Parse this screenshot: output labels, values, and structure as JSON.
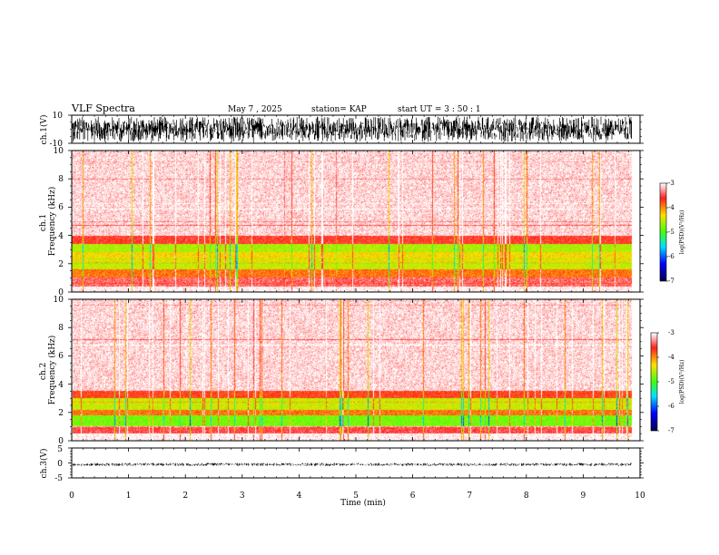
{
  "header": {
    "title": "VLF Spectra",
    "date": "May 7 , 2025",
    "station": "station= KAP",
    "start": "start  UT =   3  : 50 : 1"
  },
  "colors": {
    "white": "#ffffff",
    "red": "#ff2020",
    "yellow": "#ffe000",
    "green": "#40ff10",
    "cyan": "#00e0ff",
    "blue": "#0000ff",
    "darkblue": "#000050",
    "ink": "#000000"
  },
  "chart_data": [
    {
      "type": "line",
      "id": "ch1-waveform",
      "ylabel": "ch.1(V)",
      "xlim": [
        0,
        10
      ],
      "ylim": [
        -10,
        10
      ],
      "yticks": [
        "10",
        "-10"
      ],
      "data_end_min": 9.85,
      "amplitude_range_v": [
        -9,
        9
      ]
    },
    {
      "type": "heatmap",
      "id": "ch1-spectrogram",
      "ylabel": "ch.1\nFrequency (kHz)",
      "xlim": [
        0,
        10
      ],
      "ylim": [
        0,
        10
      ],
      "yticks": [
        "0",
        "2",
        "4",
        "6",
        "8",
        "10"
      ],
      "data_end_min": 9.85,
      "zlabel": "log(PSD)(V²/Hz)",
      "zlim": [
        -7,
        -3
      ],
      "zticks": [
        "-3",
        "-4",
        "-5",
        "-6",
        "-7"
      ],
      "bands_khz": [
        {
          "from": 0.0,
          "to": 0.4,
          "level": -3.0
        },
        {
          "from": 0.4,
          "to": 1.0,
          "level": -3.4
        },
        {
          "from": 1.0,
          "to": 1.6,
          "level": -3.9
        },
        {
          "from": 1.6,
          "to": 2.2,
          "level": -4.5
        },
        {
          "from": 2.2,
          "to": 2.8,
          "level": -4.3
        },
        {
          "from": 2.8,
          "to": 3.4,
          "level": -4.6
        },
        {
          "from": 3.4,
          "to": 4.0,
          "level": -3.6
        },
        {
          "from": 4.0,
          "to": 10.0,
          "level": -3.1
        }
      ]
    },
    {
      "type": "heatmap",
      "id": "ch2-spectrogram",
      "ylabel": "ch.2\nFrequency (kHz)",
      "xlim": [
        0,
        10
      ],
      "ylim": [
        0,
        10
      ],
      "yticks": [
        "0",
        "2",
        "4",
        "6",
        "8",
        "10"
      ],
      "data_end_min": 9.85,
      "zlabel": "log(PSD)(V²/Hz)",
      "zlim": [
        -7,
        -3
      ],
      "zticks": [
        "-3",
        "-4",
        "-5",
        "-6",
        "-7"
      ],
      "bands_khz": [
        {
          "from": 0.0,
          "to": 0.5,
          "level": -3.0
        },
        {
          "from": 0.5,
          "to": 1.0,
          "level": -3.5
        },
        {
          "from": 1.0,
          "to": 1.8,
          "level": -4.8
        },
        {
          "from": 1.8,
          "to": 2.2,
          "level": -3.9
        },
        {
          "from": 2.2,
          "to": 3.0,
          "level": -4.5
        },
        {
          "from": 3.0,
          "to": 3.5,
          "level": -3.7
        },
        {
          "from": 3.5,
          "to": 10.0,
          "level": -3.1
        }
      ]
    },
    {
      "type": "line",
      "id": "ch3-waveform",
      "ylabel": "ch.3(V)",
      "xlabel": "Time (min)",
      "xlim": [
        0,
        10
      ],
      "ylim": [
        -5,
        5
      ],
      "yticks": [
        "5",
        "0",
        "-5"
      ],
      "xticks": [
        "0",
        "1",
        "2",
        "3",
        "4",
        "5",
        "6",
        "7",
        "8",
        "9",
        "10"
      ],
      "data_end_min": 9.85,
      "amplitude_range_v": [
        -1,
        0
      ]
    }
  ]
}
